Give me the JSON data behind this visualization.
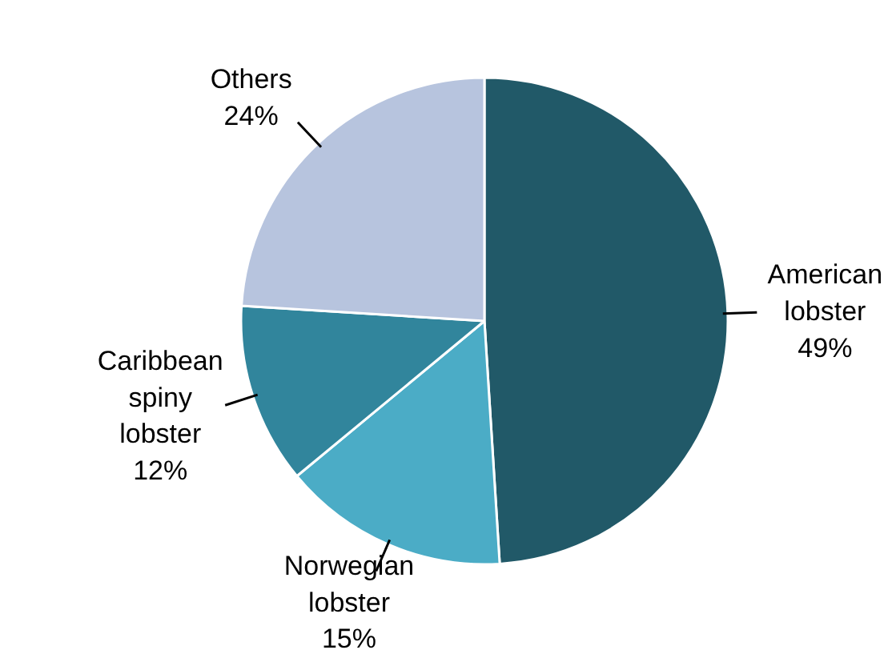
{
  "chart_data": {
    "type": "pie",
    "categories": [
      "American lobster",
      "Norwegian lobster",
      "Caribbean spiny lobster",
      "Others"
    ],
    "values": [
      49,
      15,
      12,
      24
    ],
    "colors": [
      "#215968",
      "#4bacc6",
      "#31859c",
      "#b7c4de"
    ],
    "value_labels": [
      "49%",
      "15%",
      "12%",
      "24%"
    ]
  }
}
